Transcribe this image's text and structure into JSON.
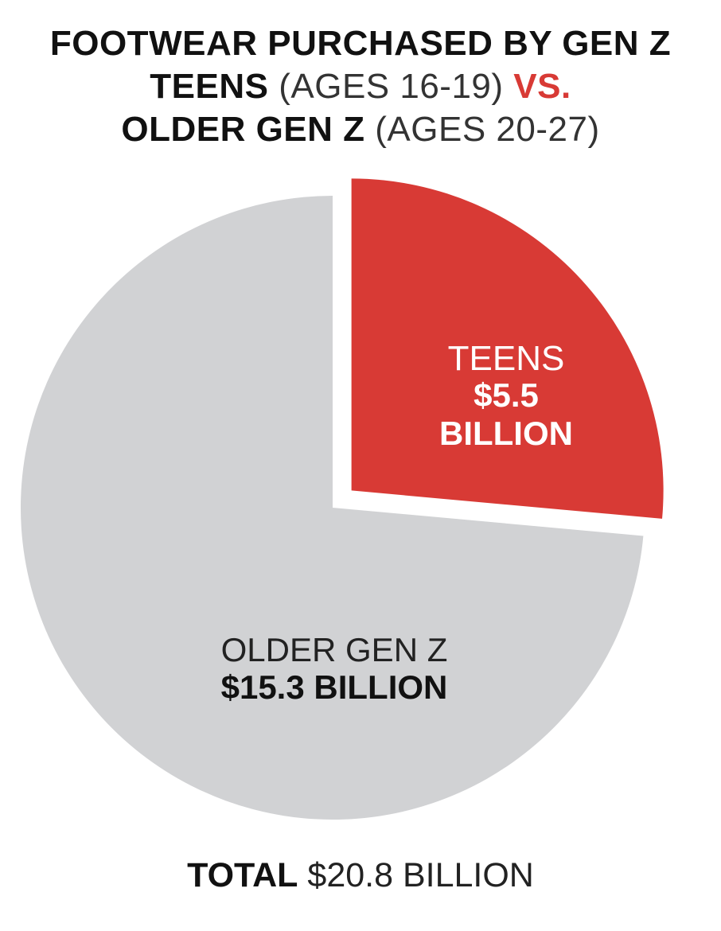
{
  "title": {
    "line1": "FOOTWEAR PURCHASED BY GEN Z",
    "teens": "TEENS",
    "teens_ages": "(AGES 16-19)",
    "vs": "VS.",
    "older": "OLDER GEN Z",
    "older_ages": "(AGES 20-27)"
  },
  "chart_data": {
    "type": "pie",
    "slices": [
      {
        "label": "TEENS",
        "value_text_1": "$5.5",
        "value_text_2": "BILLION",
        "value": 5.5,
        "color": "#d83a35",
        "exploded": true
      },
      {
        "label": "OLDER GEN Z",
        "value_text": "$15.3 BILLION",
        "value": 15.3,
        "color": "#d1d2d4",
        "exploded": false
      }
    ],
    "unit": "billion USD"
  },
  "total": {
    "label": "TOTAL",
    "value": "$20.8 BILLION"
  },
  "colors": {
    "accent": "#d83a35",
    "grey": "#d1d2d4",
    "text": "#111111",
    "label_on_red": "#ffffff"
  }
}
